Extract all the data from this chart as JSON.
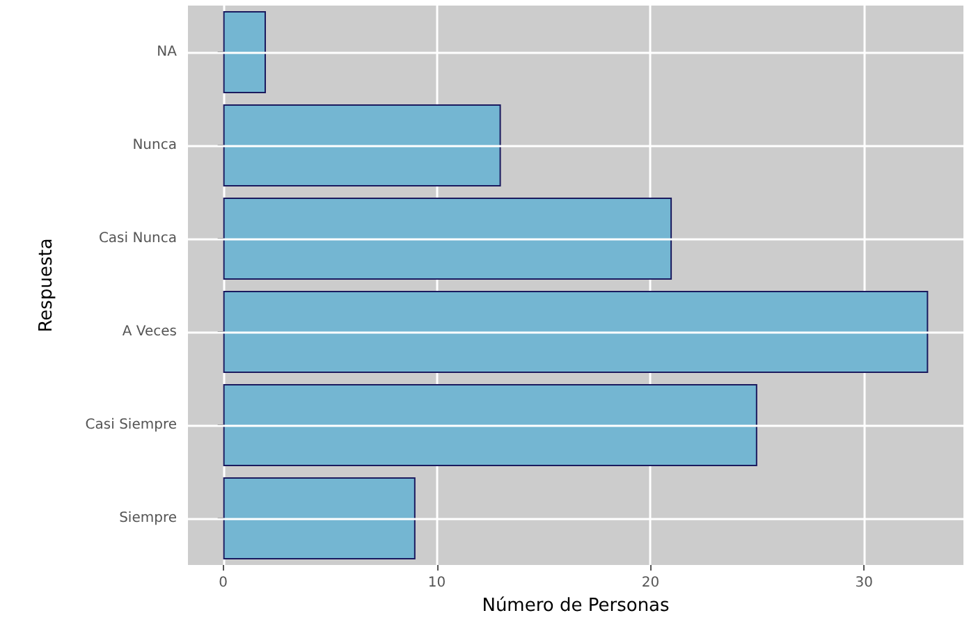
{
  "chart_data": {
    "type": "bar",
    "orientation": "horizontal",
    "xlabel": "Número de Personas",
    "ylabel": "Respuesta",
    "categories": [
      "NA",
      "Nunca",
      "Casi Nunca",
      "A Veces",
      "Casi Siempre",
      "Siempre"
    ],
    "values": [
      2,
      13,
      21,
      33,
      25,
      9
    ],
    "color": "#74b6d2",
    "xlim": [
      -1.65,
      34.65
    ],
    "xticks": [
      0,
      10,
      20,
      30
    ],
    "grid": true
  }
}
